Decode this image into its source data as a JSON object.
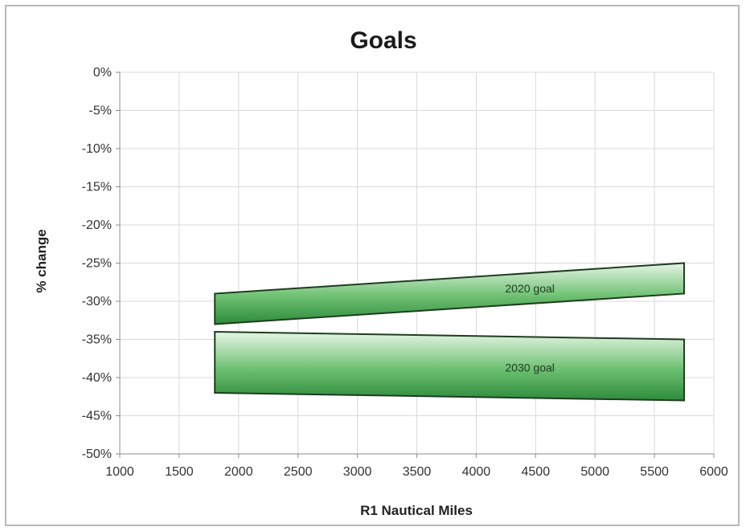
{
  "chart_data": {
    "type": "area",
    "title": "Goals",
    "xlabel": "R1 Nautical Miles",
    "ylabel": "% change",
    "xlim": [
      1000,
      6000
    ],
    "ylim": [
      -50,
      0
    ],
    "x_ticks": [
      1000,
      1500,
      2000,
      2500,
      3000,
      3500,
      4000,
      4500,
      5000,
      5500,
      6000
    ],
    "y_ticks": [
      0,
      -5,
      -10,
      -15,
      -20,
      -25,
      -30,
      -35,
      -40,
      -45,
      -50
    ],
    "y_tick_format": "percent",
    "grid": true,
    "legend": "none",
    "fill_color": "#2e8b3c",
    "series": [
      {
        "name": "2020 goal",
        "x": [
          1800,
          5750
        ],
        "upper": [
          -29,
          -25
        ],
        "lower": [
          -33,
          -29
        ]
      },
      {
        "name": "2030 goal",
        "x": [
          1800,
          5750
        ],
        "upper": [
          -34,
          -35
        ],
        "lower": [
          -42,
          -43
        ]
      }
    ]
  }
}
